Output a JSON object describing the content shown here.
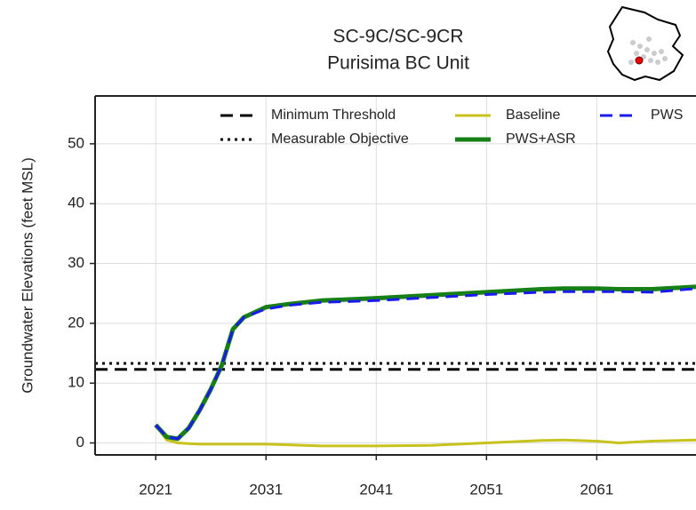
{
  "chart_data": {
    "type": "line",
    "title": "SC-9C/SC-9CR",
    "subtitle": "Purisima BC Unit",
    "y_label": "Groundwater Elevations (feet MSL)",
    "xlim": [
      2015.5,
      2070
    ],
    "xticks": [
      2021,
      2031,
      2041,
      2051,
      2061
    ],
    "ylim": [
      -2,
      58
    ],
    "yticks": [
      0,
      10,
      20,
      30,
      40,
      50
    ],
    "grid": true,
    "hlines": [
      {
        "name": "Minimum Threshold",
        "value": 12.3,
        "color": "#000000",
        "style": "dashed"
      },
      {
        "name": "Measurable Objective",
        "value": 13.3,
        "color": "#000000",
        "style": "dotted"
      }
    ],
    "x": [
      2021,
      2022,
      2023,
      2024,
      2025,
      2026,
      2027,
      2028,
      2029,
      2031,
      2033,
      2036,
      2041,
      2046,
      2051,
      2056,
      2058,
      2061,
      2063,
      2066,
      2070
    ],
    "series": [
      {
        "name": "Baseline",
        "color": "#c8c21c",
        "style": "solid",
        "width": 3,
        "values": [
          3,
          0.5,
          0,
          -0.1,
          -0.2,
          -0.2,
          -0.2,
          -0.2,
          -0.2,
          -0.2,
          -0.3,
          -0.5,
          -0.5,
          -0.4,
          0,
          0.4,
          0.5,
          0.3,
          0,
          0.3,
          0.5
        ]
      },
      {
        "name": "PWS+ASR",
        "color": "#168016",
        "style": "solid",
        "width": 5,
        "values": [
          3,
          1,
          0.7,
          2.5,
          5.5,
          9,
          13,
          19,
          21,
          22.7,
          23.2,
          23.8,
          24.2,
          24.7,
          25.2,
          25.7,
          25.8,
          25.8,
          25.7,
          25.7,
          26.1
        ]
      },
      {
        "name": "PWS",
        "color": "#1a1aee",
        "style": "dashed",
        "width": 3,
        "values": [
          3,
          1,
          0.7,
          2.5,
          5.5,
          9,
          13,
          19,
          21,
          22.4,
          23,
          23.5,
          23.8,
          24.3,
          24.8,
          25.2,
          25.3,
          25.3,
          25.3,
          25.2,
          25.8
        ]
      }
    ]
  }
}
